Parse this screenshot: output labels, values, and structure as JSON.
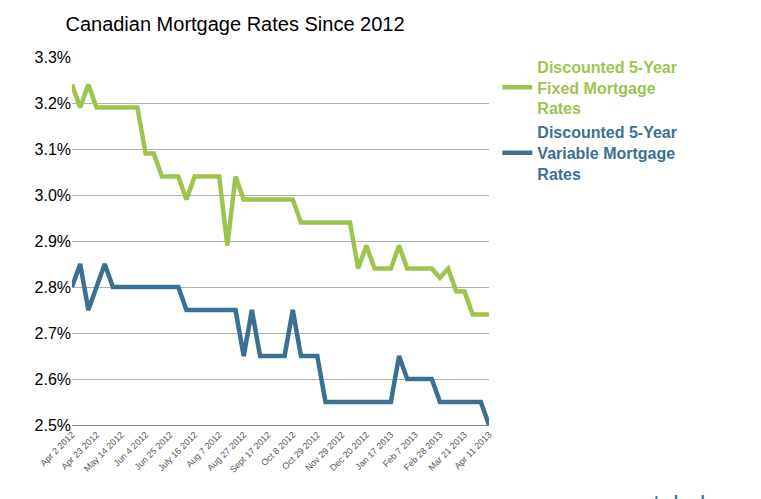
{
  "chart_data": {
    "type": "line",
    "title": "Canadian Mortgage Rates Since 2012",
    "annotations": [
      "ratehub.ca"
    ],
    "categories": [
      "Apr 2 2012",
      null,
      null,
      "Apr 23 2012",
      null,
      null,
      "May 14 2012",
      null,
      null,
      "Jun 4 2012",
      null,
      null,
      "Jun 25 2012",
      null,
      null,
      "July 16 2012",
      null,
      null,
      "Aug 7 2012",
      null,
      null,
      "Aug 27 2012",
      null,
      null,
      "Sept 17 2012",
      null,
      null,
      "Oct 8 2012",
      null,
      null,
      "Oct 29 2012",
      null,
      null,
      "Nov 29 2012",
      null,
      null,
      "Dec 20 2012",
      null,
      null,
      "Jan 17 2013",
      null,
      null,
      "Feb 7 2013",
      null,
      null,
      "Feb 28 2013",
      null,
      null,
      "Mar 21 2013",
      null,
      null,
      "Apr 11 2013"
    ],
    "series": [
      {
        "name": "Discounted 5-Year Fixed Mortgage Rates",
        "color": "#9dc44d",
        "values": [
          3.24,
          3.19,
          3.24,
          3.19,
          3.19,
          3.19,
          3.19,
          3.19,
          3.19,
          3.09,
          3.09,
          3.04,
          3.04,
          3.04,
          2.99,
          3.04,
          3.04,
          3.04,
          3.04,
          2.89,
          3.04,
          2.99,
          2.99,
          2.99,
          2.99,
          2.99,
          2.99,
          2.99,
          2.94,
          2.94,
          2.94,
          2.94,
          2.94,
          2.94,
          2.94,
          2.84,
          2.89,
          2.84,
          2.84,
          2.84,
          2.89,
          2.84,
          2.84,
          2.84,
          2.84,
          2.82,
          2.84,
          2.79,
          2.79,
          2.74,
          2.74,
          2.74
        ]
      },
      {
        "name": "Discounted 5-Year Variable Mortgage Rates",
        "color": "#3b7093",
        "values": [
          2.8,
          2.85,
          2.75,
          2.8,
          2.85,
          2.8,
          2.8,
          2.8,
          2.8,
          2.8,
          2.8,
          2.8,
          2.8,
          2.8,
          2.75,
          2.75,
          2.75,
          2.75,
          2.75,
          2.75,
          2.75,
          2.65,
          2.75,
          2.65,
          2.65,
          2.65,
          2.65,
          2.75,
          2.65,
          2.65,
          2.65,
          2.55,
          2.55,
          2.55,
          2.55,
          2.55,
          2.55,
          2.55,
          2.55,
          2.55,
          2.65,
          2.6,
          2.6,
          2.6,
          2.6,
          2.55,
          2.55,
          2.55,
          2.55,
          2.55,
          2.55,
          2.5
        ]
      }
    ],
    "ylim": [
      2.5,
      3.3
    ],
    "yticks": [
      {
        "value": 2.5,
        "label": "2.5%"
      },
      {
        "value": 2.6,
        "label": "2.6%"
      },
      {
        "value": 2.7,
        "label": "2.7%"
      },
      {
        "value": 2.8,
        "label": "2.8%"
      },
      {
        "value": 2.9,
        "label": "2.9%"
      },
      {
        "value": 3.0,
        "label": "3.0%"
      },
      {
        "value": 3.1,
        "label": "3.1%"
      },
      {
        "value": 3.2,
        "label": "3.2%"
      },
      {
        "value": 3.3,
        "label": "3.3%"
      }
    ],
    "grid": true,
    "legend": "right"
  }
}
